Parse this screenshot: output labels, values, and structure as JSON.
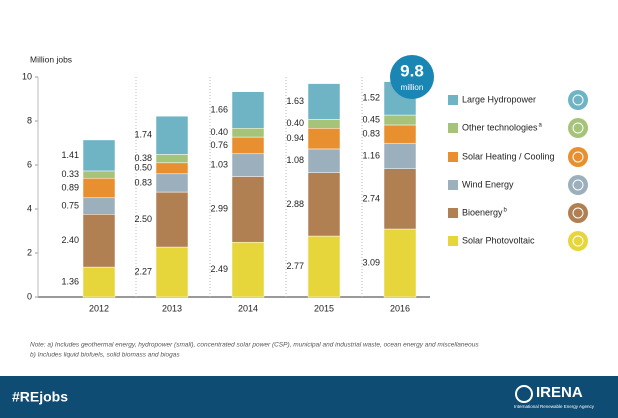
{
  "chart_data": {
    "type": "bar",
    "stacked": true,
    "y_label": "Million jobs",
    "categories": [
      "2012",
      "2013",
      "2014",
      "2015",
      "2016"
    ],
    "ylim": [
      0,
      10
    ],
    "yticks": [
      0,
      2,
      4,
      6,
      8,
      10
    ],
    "series": [
      {
        "name": "Solar Photovoltaic",
        "color": "#e6d63c",
        "values": [
          1.36,
          2.27,
          2.49,
          2.77,
          3.09
        ],
        "value_labels": [
          "1.36",
          "2.27",
          "2.49",
          "2.77",
          "3.09"
        ]
      },
      {
        "name": "Bioenergy",
        "note_mark": "b",
        "color": "#b07f52",
        "values": [
          2.4,
          2.5,
          2.99,
          2.88,
          2.74
        ],
        "value_labels": [
          "2.40",
          "2.50",
          "2.99",
          "2.88",
          "2.74"
        ]
      },
      {
        "name": "Wind Energy",
        "color": "#9bafbc",
        "values": [
          0.75,
          0.83,
          1.03,
          1.08,
          1.16
        ],
        "value_labels": [
          "0.75",
          "0.83",
          "1.03",
          "1.08",
          "1.16"
        ]
      },
      {
        "name": "Solar Heating / Cooling",
        "color": "#e8902f",
        "values": [
          0.89,
          0.5,
          0.76,
          0.94,
          0.83
        ],
        "value_labels": [
          "0.89",
          "0.50",
          "0.76",
          "0.94",
          "0.83"
        ]
      },
      {
        "name": "Other technologies",
        "note_mark": "a",
        "color": "#a5c47a",
        "values": [
          0.33,
          0.38,
          0.4,
          0.4,
          0.45
        ],
        "value_labels": [
          "0.33",
          "0.38",
          "0.40",
          "0.40",
          "0.45"
        ]
      },
      {
        "name": "Large Hydropower",
        "color": "#6fb4c5",
        "values": [
          1.41,
          1.74,
          1.66,
          1.63,
          1.52
        ],
        "value_labels": [
          "1.41",
          "1.74",
          "1.66",
          "1.63",
          "1.52"
        ]
      }
    ],
    "annotation": {
      "text": "9.8",
      "unit": "million"
    },
    "notes": [
      "Note: a) Includes geothermal energy, hydropower (small), concentrated solar power (CSP), municipal and industrial waste, ocean energy and miscellaneous",
      "b) Includes liquid biofuels, solid biomass and biogas"
    ]
  },
  "footer": {
    "hashtag": "#REjobs",
    "logo": "IRENA",
    "org": "International Renewable Energy Agency"
  }
}
